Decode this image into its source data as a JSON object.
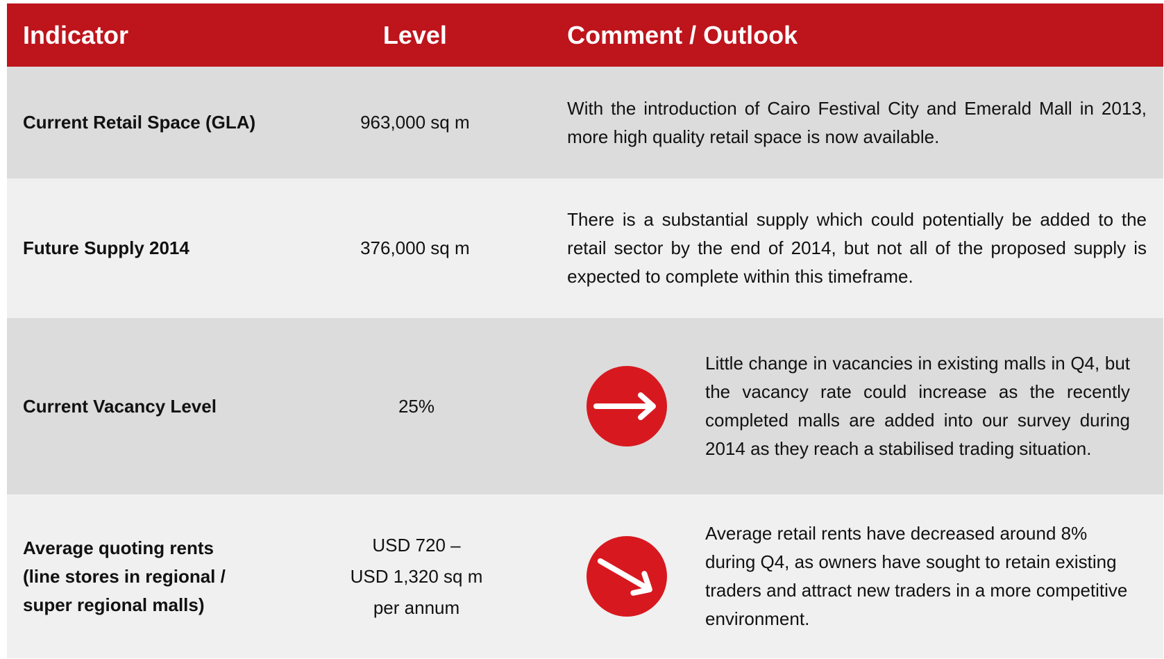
{
  "table": {
    "header": [
      "Indicator",
      "Level",
      "Comment / Outlook"
    ],
    "rows": [
      {
        "indicator": [
          "Current Retail Space (GLA)"
        ],
        "level": [
          "963,000 sq m"
        ],
        "trend": null,
        "comment": "With the introduction of Cairo Festival City and Emerald Mall in 2013, more high quality retail space is now available."
      },
      {
        "indicator": [
          "Future Supply  2014"
        ],
        "level": [
          "376,000 sq m"
        ],
        "trend": null,
        "comment": "There is a substantial supply which could potentially be added to the retail sector by the end of 2014, but not all of the proposed supply is expected to complete within this timeframe."
      },
      {
        "indicator": [
          "Current Vacancy Level"
        ],
        "level": [
          "25%"
        ],
        "trend": "flat",
        "comment": "Little change in vacancies in existing malls in Q4, but the vacancy rate could increase as the recently completed malls are added into our survey during 2014 as they reach a stabilised trading situation."
      },
      {
        "indicator": [
          "Average quoting rents",
          "(line stores in regional /",
          "super regional malls)"
        ],
        "level": [
          "USD 720 –",
          "USD 1,320 sq m",
          "per annum"
        ],
        "trend": "down",
        "comment": "Average retail rents have decreased around 8% during Q4, as owners have sought to retain existing traders and attract new traders in a more competitive environment."
      }
    ]
  }
}
